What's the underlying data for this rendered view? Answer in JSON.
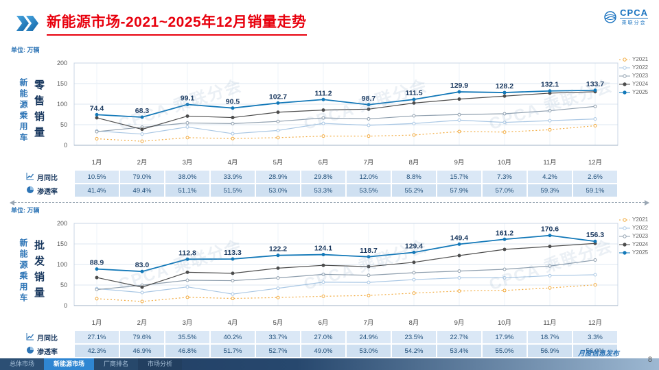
{
  "header": {
    "title": "新能源市场-2021~2025年12月销量走势"
  },
  "logo": {
    "name": "CPCA",
    "subtitle": "乘联分会"
  },
  "watermark": "CPCA 乘联分会",
  "footer": {
    "tabs": [
      {
        "label": "总体市场",
        "active": false
      },
      {
        "label": "新能源市场",
        "active": true
      },
      {
        "label": "厂商排名",
        "active": false
      },
      {
        "label": "市场分析",
        "active": false
      }
    ],
    "note": "月度信息发布",
    "page": "8"
  },
  "panels": [
    {
      "unit_label": "单位: 万辆",
      "group_label": "新能源乘用车",
      "measure_label": "零售销量",
      "table": {
        "rows": [
          {
            "icon": "trend-icon",
            "label": "月同比",
            "values": [
              "10.5%",
              "79.0%",
              "38.0%",
              "33.9%",
              "28.9%",
              "29.8%",
              "12.0%",
              "8.8%",
              "15.7%",
              "7.3%",
              "4.2%",
              "2.6%"
            ]
          },
          {
            "icon": "pie-icon",
            "label": "渗透率",
            "values": [
              "41.4%",
              "49.4%",
              "51.1%",
              "51.5%",
              "53.0%",
              "53.3%",
              "53.5%",
              "55.2%",
              "57.9%",
              "57.0%",
              "59.3%",
              "59.1%"
            ]
          }
        ]
      }
    },
    {
      "unit_label": "单位: 万辆",
      "group_label": "新能源乘用车",
      "measure_label": "批发销量",
      "table": {
        "rows": [
          {
            "icon": "trend-icon",
            "label": "月同比",
            "values": [
              "27.1%",
              "79.6%",
              "35.5%",
              "40.2%",
              "33.7%",
              "27.0%",
              "24.9%",
              "23.5%",
              "22.7%",
              "17.9%",
              "18.7%",
              "3.3%"
            ]
          },
          {
            "icon": "pie-icon",
            "label": "渗透率",
            "values": [
              "42.3%",
              "46.9%",
              "46.8%",
              "51.7%",
              "52.7%",
              "49.0%",
              "53.0%",
              "54.2%",
              "53.4%",
              "55.0%",
              "56.9%",
              "56.0%"
            ]
          }
        ]
      }
    }
  ],
  "chart_data": [
    {
      "type": "line",
      "title": "新能源乘用车零售销量 2021-2025",
      "unit": "万辆",
      "categories": [
        "1月",
        "2月",
        "3月",
        "4月",
        "5月",
        "6月",
        "7月",
        "8月",
        "9月",
        "10月",
        "11月",
        "12月"
      ],
      "ylim": [
        0,
        200
      ],
      "yticks": [
        0,
        50,
        100,
        150,
        200
      ],
      "label_color": "#17365d",
      "legend_position": "right",
      "series": [
        {
          "name": "Y2021",
          "color": "#f2a93b",
          "dash": "2,3",
          "marker": "open",
          "values": [
            15.8,
            9.7,
            18.5,
            16.3,
            18.5,
            22.3,
            22.2,
            24.9,
            33.4,
            32.1,
            37.8,
            47.5
          ]
        },
        {
          "name": "Y2022",
          "color": "#a9c7e4",
          "marker": "open",
          "values": [
            34.7,
            27.2,
            44.5,
            28.2,
            36.0,
            53.2,
            48.6,
            52.9,
            61.1,
            55.6,
            59.8,
            64.0
          ]
        },
        {
          "name": "Y2023",
          "color": "#8f9fae",
          "marker": "open",
          "values": [
            33.2,
            43.9,
            54.3,
            52.7,
            58.0,
            66.5,
            64.1,
            71.6,
            74.6,
            76.7,
            84.1,
            94.5
          ]
        },
        {
          "name": "Y2024",
          "color": "#4d4d4d",
          "marker": "filled",
          "values": [
            66.8,
            38.8,
            70.9,
            67.4,
            80.4,
            85.6,
            87.8,
            102.7,
            112.3,
            119.6,
            126.8,
            130.2
          ]
        },
        {
          "name": "Y2025",
          "color": "#1278b8",
          "marker": "filled",
          "width": 1.8,
          "labels": true,
          "values": [
            74.4,
            68.3,
            99.1,
            90.5,
            102.7,
            111.2,
            98.7,
            111.5,
            129.9,
            128.2,
            132.1,
            133.7
          ]
        }
      ]
    },
    {
      "type": "line",
      "title": "新能源乘用车批发销量 2021-2025",
      "unit": "万辆",
      "categories": [
        "1月",
        "2月",
        "3月",
        "4月",
        "5月",
        "6月",
        "7月",
        "8月",
        "9月",
        "10月",
        "11月",
        "12月"
      ],
      "ylim": [
        0,
        200
      ],
      "yticks": [
        0,
        50,
        100,
        150,
        200
      ],
      "label_color": "#17365d",
      "legend_position": "right",
      "series": [
        {
          "name": "Y2021",
          "color": "#f2a93b",
          "dash": "2,3",
          "marker": "open",
          "values": [
            16.8,
            10.0,
            20.2,
            17.4,
            19.6,
            22.7,
            24.6,
            30.4,
            35.5,
            36.8,
            42.9,
            50.5
          ]
        },
        {
          "name": "Y2022",
          "color": "#a9c7e4",
          "marker": "open",
          "values": [
            41.2,
            31.7,
            45.5,
            28.0,
            42.1,
            57.1,
            56.4,
            63.2,
            67.5,
            67.6,
            72.8,
            75.0
          ]
        },
        {
          "name": "Y2023",
          "color": "#8f9fae",
          "marker": "open",
          "values": [
            38.9,
            49.6,
            61.7,
            60.7,
            67.3,
            76.1,
            73.7,
            80.0,
            83.9,
            88.3,
            96.2,
            110.8
          ]
        },
        {
          "name": "Y2024",
          "color": "#4d4d4d",
          "marker": "filled",
          "values": [
            68.2,
            44.8,
            81.0,
            78.5,
            91.1,
            98.0,
            94.9,
            105.3,
            121.7,
            136.7,
            143.9,
            151.2
          ]
        },
        {
          "name": "Y2025",
          "color": "#1278b8",
          "marker": "filled",
          "width": 1.8,
          "labels": true,
          "values": [
            88.9,
            83.0,
            112.8,
            113.3,
            122.2,
            124.1,
            118.7,
            129.4,
            149.4,
            161.2,
            170.6,
            156.3
          ]
        }
      ]
    }
  ]
}
